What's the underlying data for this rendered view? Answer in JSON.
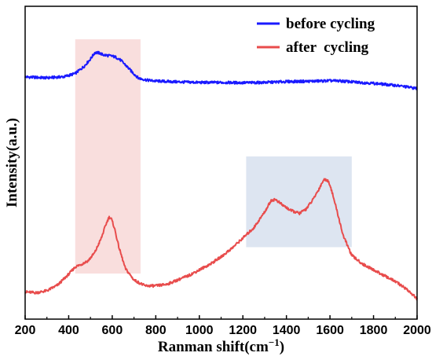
{
  "chart_data": {
    "type": "line",
    "xlabel": "Ranman shift(cm",
    "xlabel_sup": "−1",
    "xlabel_end": ")",
    "ylabel": "Intensity(a.u.)",
    "xlim": [
      200,
      2000
    ],
    "x_ticks": [
      200,
      400,
      600,
      800,
      1000,
      1200,
      1400,
      1600,
      1800,
      2000
    ],
    "y_tick_labels": "none",
    "grid": false,
    "legend_position": "top-right",
    "highlight_regions": [
      {
        "x_range": [
          430,
          730
        ],
        "y_range": [
          0.0,
          1.0
        ],
        "color": "#f9dedd"
      },
      {
        "x_range": [
          1215,
          1700
        ],
        "y_range": [
          0.23,
          0.52
        ],
        "color": "#dde5f1"
      }
    ],
    "series": [
      {
        "name": "before cycling",
        "color": "#1a1aff",
        "x": [
          200,
          300,
          380,
          430,
          470,
          500,
          520,
          540,
          560,
          580,
          600,
          620,
          640,
          660,
          690,
          720,
          760,
          800,
          900,
          1000,
          1100,
          1200,
          1300,
          1400,
          1500,
          1550,
          1600,
          1650,
          1700,
          1800,
          1900,
          1950,
          2000
        ],
        "y": [
          0.756,
          0.753,
          0.757,
          0.768,
          0.792,
          0.818,
          0.84,
          0.839,
          0.832,
          0.83,
          0.828,
          0.823,
          0.813,
          0.798,
          0.774,
          0.752,
          0.745,
          0.742,
          0.739,
          0.737,
          0.737,
          0.736,
          0.737,
          0.74,
          0.741,
          0.742,
          0.743,
          0.742,
          0.739,
          0.734,
          0.727,
          0.722,
          0.716
        ]
      },
      {
        "name": "after  cycling",
        "color": "#e84c4c",
        "x": [
          200,
          250,
          300,
          350,
          400,
          430,
          460,
          490,
          520,
          550,
          570,
          585,
          595,
          610,
          630,
          660,
          700,
          750,
          800,
          850,
          900,
          950,
          1000,
          1050,
          1100,
          1150,
          1200,
          1250,
          1300,
          1330,
          1350,
          1380,
          1420,
          1460,
          1490,
          1520,
          1550,
          1570,
          1585,
          1600,
          1630,
          1660,
          1700,
          1750,
          1800,
          1850,
          1900,
          1950,
          2000
        ],
        "y": [
          0.014,
          0.011,
          0.018,
          0.038,
          0.075,
          0.1,
          0.11,
          0.122,
          0.15,
          0.2,
          0.245,
          0.272,
          0.268,
          0.235,
          0.17,
          0.095,
          0.055,
          0.035,
          0.035,
          0.04,
          0.055,
          0.07,
          0.09,
          0.11,
          0.135,
          0.165,
          0.2,
          0.235,
          0.29,
          0.33,
          0.333,
          0.315,
          0.295,
          0.285,
          0.3,
          0.33,
          0.37,
          0.4,
          0.402,
          0.385,
          0.3,
          0.21,
          0.14,
          0.11,
          0.09,
          0.07,
          0.05,
          0.025,
          -0.01
        ]
      }
    ]
  }
}
